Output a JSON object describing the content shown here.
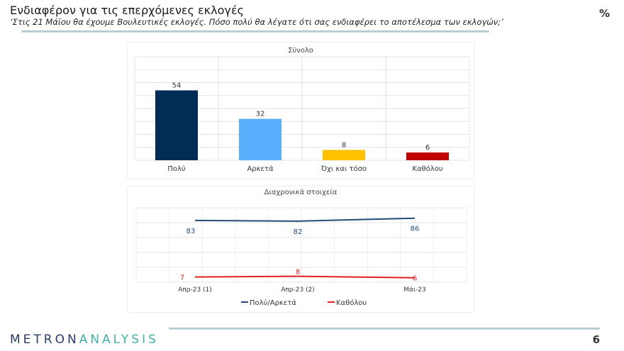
{
  "header": {
    "title": "Ενδιαφέρον για τις επερχόμενες εκλογές",
    "subtitle": "‘Στις 21 Μάϊου θα έχουμε Βουλευτικές εκλογές. Πόσο πολύ θα λέγατε ότι σας ενδιαφέρει το αποτέλεσμα των εκλογών;’",
    "unit": "%"
  },
  "footer": {
    "logo_part1": "METRON",
    "logo_part2": "ANALYSIS",
    "page": "6"
  },
  "colors": {
    "navy": "#002c55",
    "lightblue": "#5aaffc",
    "yellow": "#ffc000",
    "red": "#c00000",
    "line_blue": "#244b7a",
    "line_red": "#e02020"
  },
  "chart_data": [
    {
      "type": "bar",
      "title": "Σύνολο",
      "categories": [
        "Πολύ",
        "Αρκετά",
        "Όχι και τόσο",
        "Καθόλου"
      ],
      "values": [
        54,
        32,
        8,
        6
      ],
      "ylim": [
        0,
        80
      ],
      "grid": true
    },
    {
      "type": "line",
      "title": "Διαχρονικά στοιχεία",
      "categories": [
        "Απρ-23 (1)",
        "Απρ-23 (2)",
        "Μάι-23"
      ],
      "ylim": [
        0,
        100
      ],
      "grid": true,
      "legend": "bottom",
      "series": [
        {
          "name": "Πολύ/Αρκετά",
          "values": [
            83,
            82,
            86
          ]
        },
        {
          "name": "Καθόλου",
          "values": [
            7,
            8,
            6
          ]
        }
      ]
    }
  ]
}
